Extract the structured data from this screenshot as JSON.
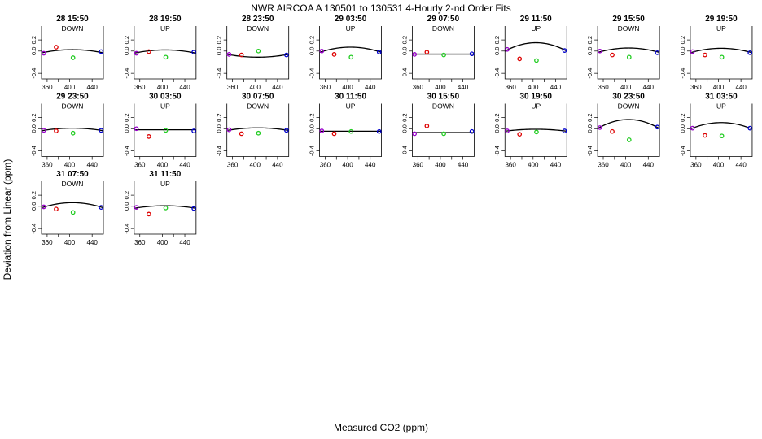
{
  "figure": {
    "title": "NWR   AIRCOA A   130501 to 130531   4-Hourly 2-nd Order Fits",
    "xlabel": "Measured CO2 (ppm)",
    "ylabel": "Deviation from Linear (ppm)",
    "colors": {
      "red": "#dd0000",
      "green": "#22cc22",
      "blue": "#0000cc",
      "purple": "#9900cc"
    }
  },
  "chart_data": {
    "type": "scatter",
    "xlim": [
      350,
      460
    ],
    "ylim": [
      -0.5,
      0.45
    ],
    "xticks": [
      "360",
      "400",
      "440"
    ],
    "xminor": [
      "380",
      "420"
    ],
    "yticks": [
      "-0.4",
      "0.0",
      "0.2"
    ],
    "panels": [
      {
        "title": "28 15:50",
        "dir": "DOWN",
        "a": 0.05,
        "pts": [
          [
            354,
            -0.04,
            "purple"
          ],
          [
            376,
            0.07,
            "red"
          ],
          [
            406,
            -0.12,
            "green"
          ],
          [
            456,
            -0.01,
            "blue"
          ]
        ]
      },
      {
        "title": "28 19:50",
        "dir": "UP",
        "a": 0.05,
        "pts": [
          [
            354,
            -0.04,
            "purple"
          ],
          [
            376,
            -0.01,
            "red"
          ],
          [
            406,
            -0.11,
            "green"
          ],
          [
            456,
            -0.02,
            "blue"
          ]
        ]
      },
      {
        "title": "28 23:50",
        "dir": "DOWN",
        "a": -0.045,
        "pts": [
          [
            354,
            -0.06,
            "purple"
          ],
          [
            376,
            -0.07,
            "red"
          ],
          [
            406,
            0.0,
            "green"
          ],
          [
            456,
            -0.07,
            "blue"
          ]
        ]
      },
      {
        "title": "29 03:50",
        "dir": "UP",
        "a": 0.08,
        "pts": [
          [
            354,
            0.0,
            "purple"
          ],
          [
            376,
            -0.06,
            "red"
          ],
          [
            406,
            -0.11,
            "green"
          ],
          [
            456,
            -0.02,
            "blue"
          ]
        ]
      },
      {
        "title": "29 07:50",
        "dir": "DOWN",
        "a": 0.0,
        "pts": [
          [
            354,
            -0.06,
            "purple"
          ],
          [
            376,
            -0.02,
            "red"
          ],
          [
            406,
            -0.07,
            "green"
          ],
          [
            456,
            -0.05,
            "blue"
          ]
        ]
      },
      {
        "title": "29 11:50",
        "dir": "UP",
        "a": 0.13,
        "pts": [
          [
            354,
            0.03,
            "purple"
          ],
          [
            376,
            -0.14,
            "red"
          ],
          [
            406,
            -0.17,
            "green"
          ],
          [
            456,
            0.01,
            "blue"
          ]
        ]
      },
      {
        "title": "29 15:50",
        "dir": "DOWN",
        "a": 0.07,
        "pts": [
          [
            354,
            0.0,
            "purple"
          ],
          [
            376,
            -0.07,
            "red"
          ],
          [
            406,
            -0.11,
            "green"
          ],
          [
            456,
            -0.03,
            "blue"
          ]
        ]
      },
      {
        "title": "29 19:50",
        "dir": "UP",
        "a": 0.07,
        "pts": [
          [
            354,
            -0.01,
            "purple"
          ],
          [
            376,
            -0.07,
            "red"
          ],
          [
            406,
            -0.11,
            "green"
          ],
          [
            456,
            -0.03,
            "blue"
          ]
        ]
      },
      {
        "title": "29 23:50",
        "dir": "DOWN",
        "a": 0.04,
        "pts": [
          [
            354,
            -0.03,
            "purple"
          ],
          [
            376,
            -0.04,
            "red"
          ],
          [
            406,
            -0.08,
            "green"
          ],
          [
            456,
            -0.03,
            "blue"
          ]
        ]
      },
      {
        "title": "30 03:50",
        "dir": "UP",
        "a": 0.0,
        "pts": [
          [
            354,
            0.0,
            "purple"
          ],
          [
            376,
            -0.14,
            "red"
          ],
          [
            406,
            -0.03,
            "green"
          ],
          [
            456,
            -0.04,
            "blue"
          ]
        ]
      },
      {
        "title": "30 07:50",
        "dir": "DOWN",
        "a": 0.04,
        "pts": [
          [
            354,
            -0.02,
            "purple"
          ],
          [
            376,
            -0.09,
            "red"
          ],
          [
            406,
            -0.08,
            "green"
          ],
          [
            456,
            -0.03,
            "blue"
          ]
        ]
      },
      {
        "title": "30 11:50",
        "dir": "UP",
        "a": 0.0,
        "pts": [
          [
            354,
            -0.04,
            "purple"
          ],
          [
            376,
            -0.09,
            "red"
          ],
          [
            406,
            -0.05,
            "green"
          ],
          [
            456,
            -0.05,
            "blue"
          ]
        ]
      },
      {
        "title": "30 15:50",
        "dir": "DOWN",
        "a": 0.0,
        "pts": [
          [
            354,
            -0.09,
            "purple"
          ],
          [
            376,
            0.05,
            "red"
          ],
          [
            406,
            -0.09,
            "green"
          ],
          [
            456,
            -0.05,
            "blue"
          ]
        ]
      },
      {
        "title": "30 19:50",
        "dir": "UP",
        "a": 0.03,
        "pts": [
          [
            354,
            -0.04,
            "purple"
          ],
          [
            376,
            -0.1,
            "red"
          ],
          [
            406,
            -0.06,
            "green"
          ],
          [
            456,
            -0.04,
            "blue"
          ]
        ]
      },
      {
        "title": "30 23:50",
        "dir": "DOWN",
        "a": 0.14,
        "pts": [
          [
            354,
            0.02,
            "purple"
          ],
          [
            376,
            -0.05,
            "red"
          ],
          [
            406,
            -0.2,
            "green"
          ],
          [
            456,
            0.03,
            "blue"
          ]
        ]
      },
      {
        "title": "31 03:50",
        "dir": "UP",
        "a": 0.1,
        "pts": [
          [
            354,
            0.01,
            "purple"
          ],
          [
            376,
            -0.12,
            "red"
          ],
          [
            406,
            -0.13,
            "green"
          ],
          [
            456,
            0.01,
            "blue"
          ]
        ]
      },
      {
        "title": "31 07:50",
        "dir": "DOWN",
        "a": 0.08,
        "pts": [
          [
            354,
            -0.01,
            "purple"
          ],
          [
            376,
            -0.05,
            "red"
          ],
          [
            406,
            -0.11,
            "green"
          ],
          [
            456,
            -0.02,
            "blue"
          ]
        ]
      },
      {
        "title": "31 11:50",
        "dir": "UP",
        "a": 0.04,
        "pts": [
          [
            354,
            -0.02,
            "purple"
          ],
          [
            376,
            -0.14,
            "red"
          ],
          [
            406,
            -0.03,
            "green"
          ],
          [
            456,
            -0.04,
            "blue"
          ]
        ]
      }
    ]
  }
}
